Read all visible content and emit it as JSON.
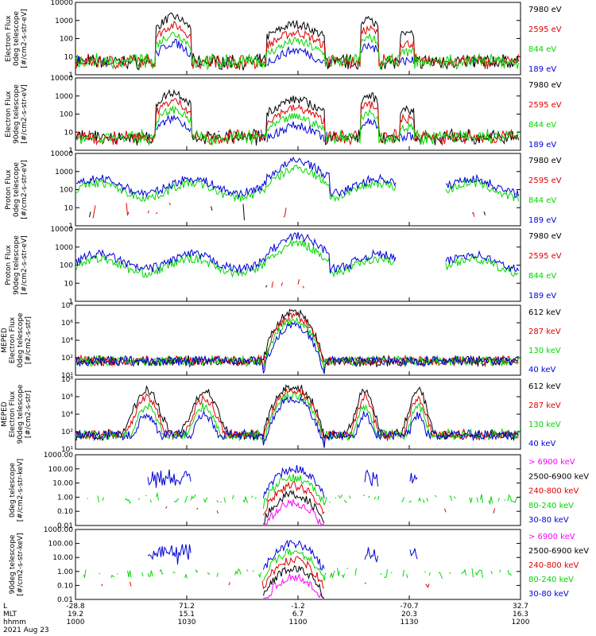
{
  "colors": {
    "black": "#000000",
    "red": "#e00000",
    "green": "#00d800",
    "blue": "#0000d8",
    "magenta": "#ff00ff"
  },
  "footer": {
    "row_labels": [
      "L",
      "MLT",
      "hhmm",
      "2021 Aug 23"
    ],
    "columns": [
      {
        "L": "-28.8",
        "MLT": "19.2",
        "hhmm": "1000"
      },
      {
        "L": "71.2",
        "MLT": "15.1",
        "hhmm": "1030"
      },
      {
        "L": "-1.2",
        "MLT": "6.7",
        "hhmm": "1100"
      },
      {
        "L": "-70.7",
        "MLT": "20.3",
        "hhmm": "1130"
      },
      {
        "L": "32.7",
        "MLT": "16.3",
        "hhmm": "1200"
      }
    ]
  },
  "chart_data": [
    {
      "type": "line",
      "ylabel": [
        "Electron Flux",
        "0deg telescope",
        "[#/cm2-s-str-eV]"
      ],
      "yscale": "log",
      "ylim": [
        1,
        10000
      ],
      "yticks": [
        "1",
        "10",
        "100",
        "1000",
        "10000"
      ],
      "series": [
        {
          "name": "7980 eV",
          "color": "black"
        },
        {
          "name": "2595 eV",
          "color": "red"
        },
        {
          "name": "844 eV",
          "color": "green"
        },
        {
          "name": "189 eV",
          "color": "blue"
        }
      ]
    },
    {
      "type": "line",
      "ylabel": [
        "Electron Flux",
        "90deg telescope",
        "[#/cm2-s-str-eV]"
      ],
      "yscale": "log",
      "ylim": [
        1,
        10000
      ],
      "yticks": [
        "1",
        "10",
        "100",
        "1000",
        "10000"
      ],
      "series": [
        {
          "name": "7980 eV",
          "color": "black"
        },
        {
          "name": "2595 eV",
          "color": "red"
        },
        {
          "name": "844 eV",
          "color": "green"
        },
        {
          "name": "189 eV",
          "color": "blue"
        }
      ]
    },
    {
      "type": "line",
      "ylabel": [
        "Proton Flux",
        "0deg telescope",
        "[#/cm2-s-str-eV]"
      ],
      "yscale": "log",
      "ylim": [
        1,
        10000
      ],
      "yticks": [
        "1",
        "10",
        "100",
        "1000",
        "10000"
      ],
      "series": [
        {
          "name": "7980 eV",
          "color": "black"
        },
        {
          "name": "2595 eV",
          "color": "red"
        },
        {
          "name": "844 eV",
          "color": "green"
        },
        {
          "name": "189 eV",
          "color": "blue"
        }
      ]
    },
    {
      "type": "line",
      "ylabel": [
        "Proton Flux",
        "90deg telescope",
        "[#/cm2-s-str-eV]"
      ],
      "yscale": "log",
      "ylim": [
        1,
        10000
      ],
      "yticks": [
        "1",
        "10",
        "100",
        "1000",
        "10000"
      ],
      "series": [
        {
          "name": "7980 eV",
          "color": "black"
        },
        {
          "name": "2595 eV",
          "color": "red"
        },
        {
          "name": "844 eV",
          "color": "green"
        },
        {
          "name": "189 eV",
          "color": "blue"
        }
      ]
    },
    {
      "type": "line",
      "ylabel": [
        "MEPED",
        "Electron Flux",
        "0deg telescope",
        "[#/cm2-s-str]"
      ],
      "yscale": "log",
      "ylim": [
        10,
        1000000000
      ],
      "yticks": [
        "10¹",
        "10²",
        "10⁴",
        "10⁶",
        "10⁸"
      ],
      "series": [
        {
          "name": "612 keV",
          "color": "black"
        },
        {
          "name": "287 keV",
          "color": "red"
        },
        {
          "name": "130 keV",
          "color": "green"
        },
        {
          "name": "40 keV",
          "color": "blue"
        }
      ]
    },
    {
      "type": "line",
      "ylabel": [
        "MEPED",
        "Electron Flux",
        "90deg telescope",
        "[#/cm2-s-str]"
      ],
      "yscale": "log",
      "ylim": [
        10,
        1000000000
      ],
      "yticks": [
        "10¹",
        "10²",
        "10⁴",
        "10⁶",
        "10⁸"
      ],
      "series": [
        {
          "name": "612 keV",
          "color": "black"
        },
        {
          "name": "287 keV",
          "color": "red"
        },
        {
          "name": "130 keV",
          "color": "green"
        },
        {
          "name": "40 keV",
          "color": "blue"
        }
      ]
    },
    {
      "type": "line",
      "ylabel": [
        "0deg telescope",
        "[#/cm2-s-str-keV]"
      ],
      "yscale": "log",
      "ylim": [
        0.01,
        1000
      ],
      "yticks": [
        "0.01",
        "0.10",
        "1.00",
        "10.00",
        "100.00",
        "1000.00"
      ],
      "series": [
        {
          "name": "> 6900 keV",
          "color": "magenta"
        },
        {
          "name": "2500-6900 keV",
          "color": "black"
        },
        {
          "name": "240-800 keV",
          "color": "red"
        },
        {
          "name": "80-240 keV",
          "color": "green"
        },
        {
          "name": "30-80 keV",
          "color": "blue"
        }
      ]
    },
    {
      "type": "line",
      "ylabel": [
        "90deg telescope",
        "[#/cm2-s-str-keV]"
      ],
      "yscale": "log",
      "ylim": [
        0.01,
        1000
      ],
      "yticks": [
        "0.01",
        "0.10",
        "1.00",
        "10.00",
        "100.00",
        "1000.00"
      ],
      "series": [
        {
          "name": "> 6900 keV",
          "color": "magenta"
        },
        {
          "name": "2500-6900 keV",
          "color": "black"
        },
        {
          "name": "240-800 keV",
          "color": "red"
        },
        {
          "name": "80-240 keV",
          "color": "green"
        },
        {
          "name": "30-80 keV",
          "color": "blue"
        }
      ]
    }
  ]
}
